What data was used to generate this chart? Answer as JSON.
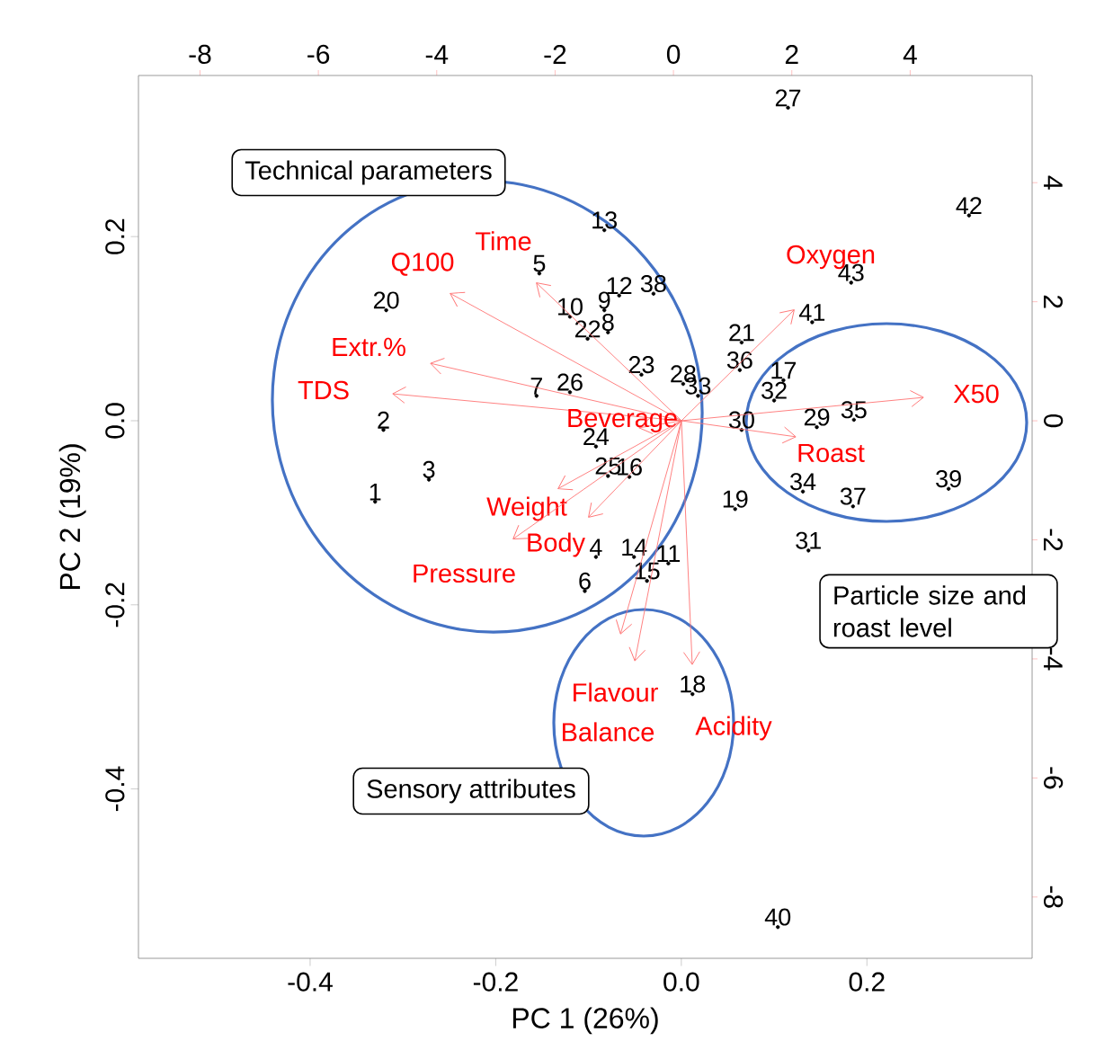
{
  "chart_data": {
    "type": "scatter",
    "xlabel": "PC 1 (26%)",
    "ylabel": "PC 2 (19%)",
    "xlim": [
      -0.585,
      0.378
    ],
    "ylim": [
      -0.584,
      0.375
    ],
    "xticks": [
      -0.4,
      -0.2,
      {
        "value": 0,
        "label": "0.0"
      },
      0.2
    ],
    "yticks": [
      -0.4,
      -0.2,
      {
        "value": 0,
        "label": "0.0"
      },
      0.2
    ],
    "x2lim": [
      -9.04,
      6.06
    ],
    "x2ticks": [
      -8,
      -6,
      -4,
      -2,
      0,
      2,
      4
    ],
    "y2lim": [
      -9.03,
      5.8
    ],
    "y2ticks": [
      -8,
      -6,
      -4,
      -2,
      0,
      2,
      4
    ],
    "marker": "circle",
    "annotations": [
      "Technical parameters",
      "Particle size and roast level",
      "Sensory attributes",
      "Q100",
      "Time",
      "Extr.%",
      "TDS",
      "Beverage",
      "Weight",
      "Body",
      "Pressure",
      "Flavour",
      "Balance",
      "Acidity",
      "Oxygen",
      "X50",
      "Roast",
      {
        "text": "13",
        "x": -0.083,
        "y": 0.207
      },
      {
        "text": "5",
        "x": -0.153,
        "y": 0.16
      },
      {
        "text": "20",
        "x": -0.318,
        "y": 0.12
      },
      {
        "text": "10",
        "x": -0.12,
        "y": 0.113
      },
      {
        "text": "9",
        "x": -0.083,
        "y": 0.12
      },
      {
        "text": "12",
        "x": -0.067,
        "y": 0.136
      },
      {
        "text": "38",
        "x": -0.03,
        "y": 0.138
      },
      {
        "text": "22",
        "x": -0.101,
        "y": 0.089
      },
      {
        "text": "8",
        "x": -0.079,
        "y": 0.096
      },
      {
        "text": "23",
        "x": -0.043,
        "y": 0.05
      },
      {
        "text": "28",
        "x": 0.002,
        "y": 0.04
      },
      {
        "text": "7",
        "x": -0.156,
        "y": 0.027
      },
      {
        "text": "26",
        "x": -0.12,
        "y": 0.031
      },
      {
        "text": "2",
        "x": -0.321,
        "y": -0.01
      },
      {
        "text": "24",
        "x": -0.092,
        "y": -0.028
      },
      {
        "text": "3",
        "x": -0.272,
        "y": -0.064
      },
      {
        "text": "25",
        "x": -0.079,
        "y": -0.06
      },
      {
        "text": "16",
        "x": -0.056,
        "y": -0.061
      },
      {
        "text": "1",
        "x": -0.33,
        "y": -0.088
      },
      {
        "text": "4",
        "x": -0.092,
        "y": -0.148
      },
      {
        "text": "14",
        "x": -0.051,
        "y": -0.148
      },
      {
        "text": "11",
        "x": -0.014,
        "y": -0.155
      },
      {
        "text": "15",
        "x": -0.037,
        "y": -0.174
      },
      {
        "text": "6",
        "x": -0.104,
        "y": -0.185
      },
      {
        "text": "18",
        "x": 0.012,
        "y": -0.297
      },
      {
        "text": "27",
        "x": 0.115,
        "y": 0.34
      },
      {
        "text": "42",
        "x": 0.31,
        "y": 0.223
      },
      {
        "text": "43",
        "x": 0.183,
        "y": 0.15
      },
      {
        "text": "41",
        "x": 0.141,
        "y": 0.107
      },
      {
        "text": "21",
        "x": 0.065,
        "y": 0.085
      },
      {
        "text": "36",
        "x": 0.063,
        "y": 0.055
      },
      {
        "text": "17",
        "x": 0.11,
        "y": 0.044
      },
      {
        "text": "33",
        "x": 0.018,
        "y": 0.027
      },
      {
        "text": "32",
        "x": 0.1,
        "y": 0.022
      },
      {
        "text": "30",
        "x": 0.065,
        "y": -0.01
      },
      {
        "text": "29",
        "x": 0.146,
        "y": -0.007
      },
      {
        "text": "35",
        "x": 0.186,
        "y": 0.001
      },
      {
        "text": "34",
        "x": 0.131,
        "y": -0.077
      },
      {
        "text": "37",
        "x": 0.185,
        "y": -0.093
      },
      {
        "text": "39",
        "x": 0.288,
        "y": -0.074
      },
      {
        "text": "19",
        "x": 0.058,
        "y": -0.096
      },
      {
        "text": "31",
        "x": 0.137,
        "y": -0.141
      },
      {
        "text": "40",
        "x": 0.104,
        "y": -0.55
      }
    ],
    "series": [
      {
        "color": "#000000",
        "x": [
          -0.083,
          -0.153,
          -0.318,
          -0.12,
          -0.083,
          -0.067,
          -0.03,
          -0.101,
          -0.079,
          -0.043,
          0.002,
          -0.156,
          -0.12,
          -0.321,
          -0.092,
          -0.272,
          -0.079,
          -0.056,
          -0.33,
          -0.092,
          -0.051,
          -0.014,
          -0.037,
          -0.104,
          0.012,
          0.115,
          0.31,
          0.183,
          0.141,
          0.065,
          0.063,
          0.11,
          0.018,
          0.1,
          0.065,
          0.146,
          0.186,
          0.131,
          0.185,
          0.288,
          0.058,
          0.137,
          0.104
        ],
        "values": [
          0.207,
          0.16,
          0.12,
          0.113,
          0.12,
          0.136,
          0.138,
          0.089,
          0.096,
          0.05,
          0.04,
          0.027,
          0.031,
          -0.01,
          -0.028,
          -0.064,
          -0.06,
          -0.061,
          -0.088,
          -0.148,
          -0.148,
          -0.155,
          -0.174,
          -0.185,
          -0.297,
          0.34,
          0.223,
          0.15,
          0.107,
          0.085,
          0.055,
          0.044,
          0.027,
          0.022,
          -0.01,
          -0.007,
          0.001,
          -0.077,
          -0.093,
          -0.074,
          -0.096,
          -0.141,
          -0.55
        ]
      }
    ]
  }
}
